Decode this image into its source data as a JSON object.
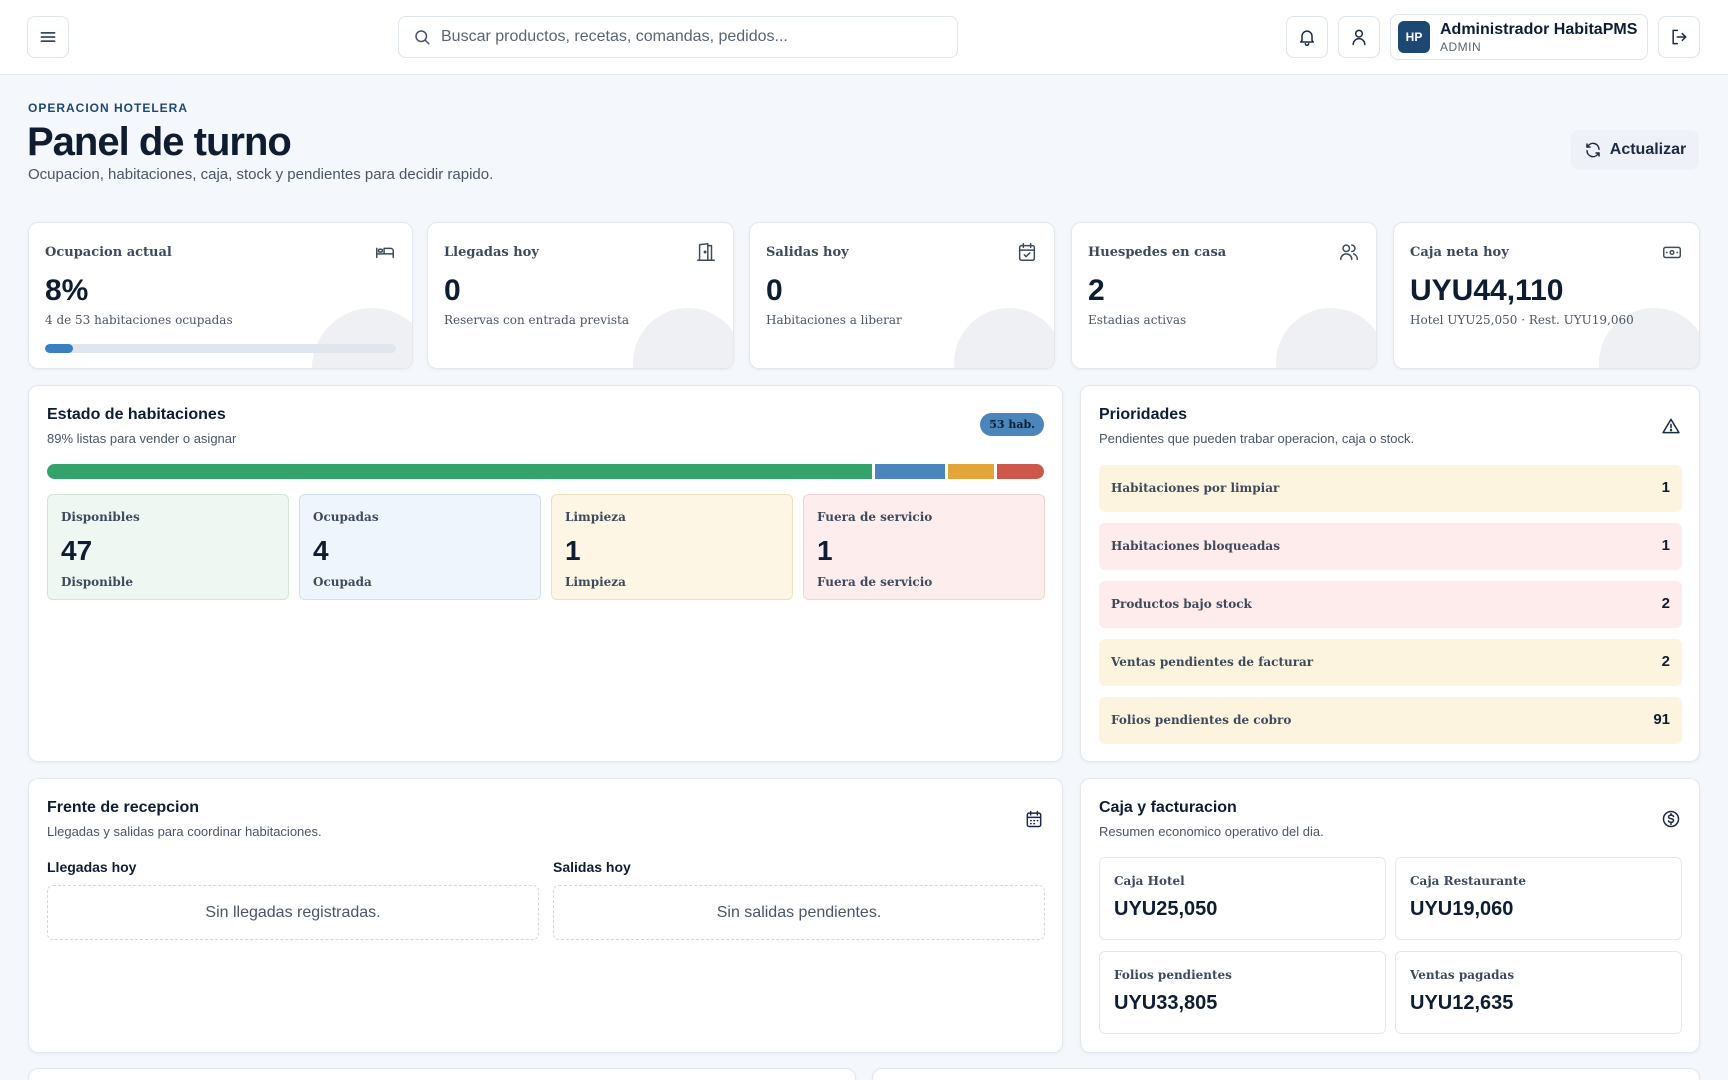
{
  "header": {
    "search_placeholder": "Buscar productos, recetas, comandas, pedidos...",
    "user": {
      "initials": "HP",
      "name": "Administrador HabitaPMS",
      "role": "ADMIN"
    }
  },
  "page": {
    "eyebrow": "OPERACION HOTELERA",
    "title": "Panel de turno",
    "subtitle": "Ocupacion, habitaciones, caja, stock y pendientes para decidir rapido.",
    "refresh_label": "Actualizar"
  },
  "kpis": [
    {
      "label": "Ocupacion actual",
      "value": "8%",
      "sub": "4 de 53 habitaciones ocupadas",
      "icon": "bed-icon",
      "progress_percent": 8
    },
    {
      "label": "Llegadas hoy",
      "value": "0",
      "sub": "Reservas con entrada prevista",
      "icon": "door-icon"
    },
    {
      "label": "Salidas hoy",
      "value": "0",
      "sub": "Habitaciones a liberar",
      "icon": "calendar-check-icon"
    },
    {
      "label": "Huespedes en casa",
      "value": "2",
      "sub": "Estadias activas",
      "icon": "users-icon"
    },
    {
      "label": "Caja neta hoy",
      "value": "UYU44,110",
      "sub": "Hotel UYU25,050 · Rest. UYU19,060",
      "icon": "cash-icon"
    }
  ],
  "rooms": {
    "title": "Estado de habitaciones",
    "subtitle": "89% listas para vender o asignar",
    "badge": "53 hab.",
    "breakdown": [
      {
        "label": "Disponibles",
        "value": "47",
        "foot": "Disponible",
        "count": 47,
        "bar_color": "#34a36b",
        "bg": "#eef7f1",
        "border": "#cde8d6"
      },
      {
        "label": "Ocupadas",
        "value": "4",
        "foot": "Ocupada",
        "count": 4,
        "bar_color": "#4a86bb",
        "bg": "#eef5fc",
        "border": "#cfe0f1"
      },
      {
        "label": "Limpieza",
        "value": "1",
        "foot": "Limpieza",
        "count": 1,
        "bar_color": "#e3a43a",
        "bg": "#fdf6e4",
        "border": "#f1e1b7"
      },
      {
        "label": "Fuera de servicio",
        "value": "1",
        "foot": "Fuera de servicio",
        "count": 1,
        "bar_color": "#cc574a",
        "bg": "#fdeeed",
        "border": "#f2d3d0"
      }
    ]
  },
  "priorities": {
    "title": "Prioridades",
    "subtitle": "Pendientes que pueden trabar operacion, caja o stock.",
    "items": [
      {
        "label": "Habitaciones por limpiar",
        "count": "1",
        "bg": "#fdf4e0"
      },
      {
        "label": "Habitaciones bloqueadas",
        "count": "1",
        "bg": "#fdeceb"
      },
      {
        "label": "Productos bajo stock",
        "count": "2",
        "bg": "#fdeceb"
      },
      {
        "label": "Ventas pendientes de facturar",
        "count": "2",
        "bg": "#fdf4e0"
      },
      {
        "label": "Folios pendientes de cobro",
        "count": "91",
        "bg": "#fdf4e0"
      }
    ]
  },
  "reception": {
    "title": "Frente de recepcion",
    "subtitle": "Llegadas y salidas para coordinar habitaciones.",
    "arrivals_title": "Llegadas hoy",
    "arrivals_empty": "Sin llegadas registradas.",
    "departures_title": "Salidas hoy",
    "departures_empty": "Sin salidas pendientes."
  },
  "billing": {
    "title": "Caja y facturacion",
    "subtitle": "Resumen economico operativo del dia.",
    "boxes": [
      {
        "label": "Caja Hotel",
        "value": "UYU25,050"
      },
      {
        "label": "Caja Restaurante",
        "value": "UYU19,060"
      },
      {
        "label": "Folios pendientes",
        "value": "UYU33,805"
      },
      {
        "label": "Ventas pagadas",
        "value": "UYU12,635"
      }
    ]
  }
}
